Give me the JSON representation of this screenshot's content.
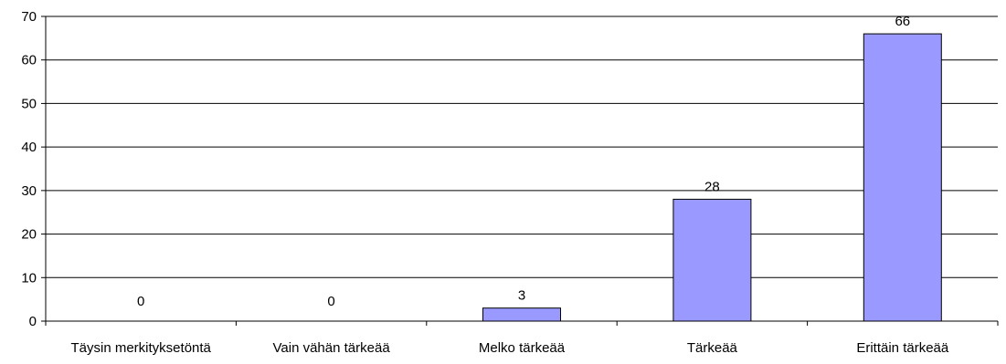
{
  "chart_data": {
    "type": "bar",
    "title": "",
    "xlabel": "",
    "ylabel": "",
    "categories": [
      "Täysin merkityksetöntä",
      "Vain vähän tärkeää",
      "Melko tärkeää",
      "Tärkeää",
      "Erittäin tärkeää"
    ],
    "values": [
      0,
      0,
      3,
      28,
      66
    ],
    "data_labels": [
      "0",
      "0",
      "3",
      "28",
      "66"
    ],
    "ylim": [
      0,
      70
    ],
    "yticks": [
      "0",
      "10",
      "20",
      "30",
      "40",
      "50",
      "60",
      "70"
    ],
    "grid": true,
    "legend": "none",
    "colors": {
      "bar_fill": "#9999ff",
      "bar_stroke": "#000000",
      "grid": "#000000",
      "axis": "#000000"
    }
  }
}
